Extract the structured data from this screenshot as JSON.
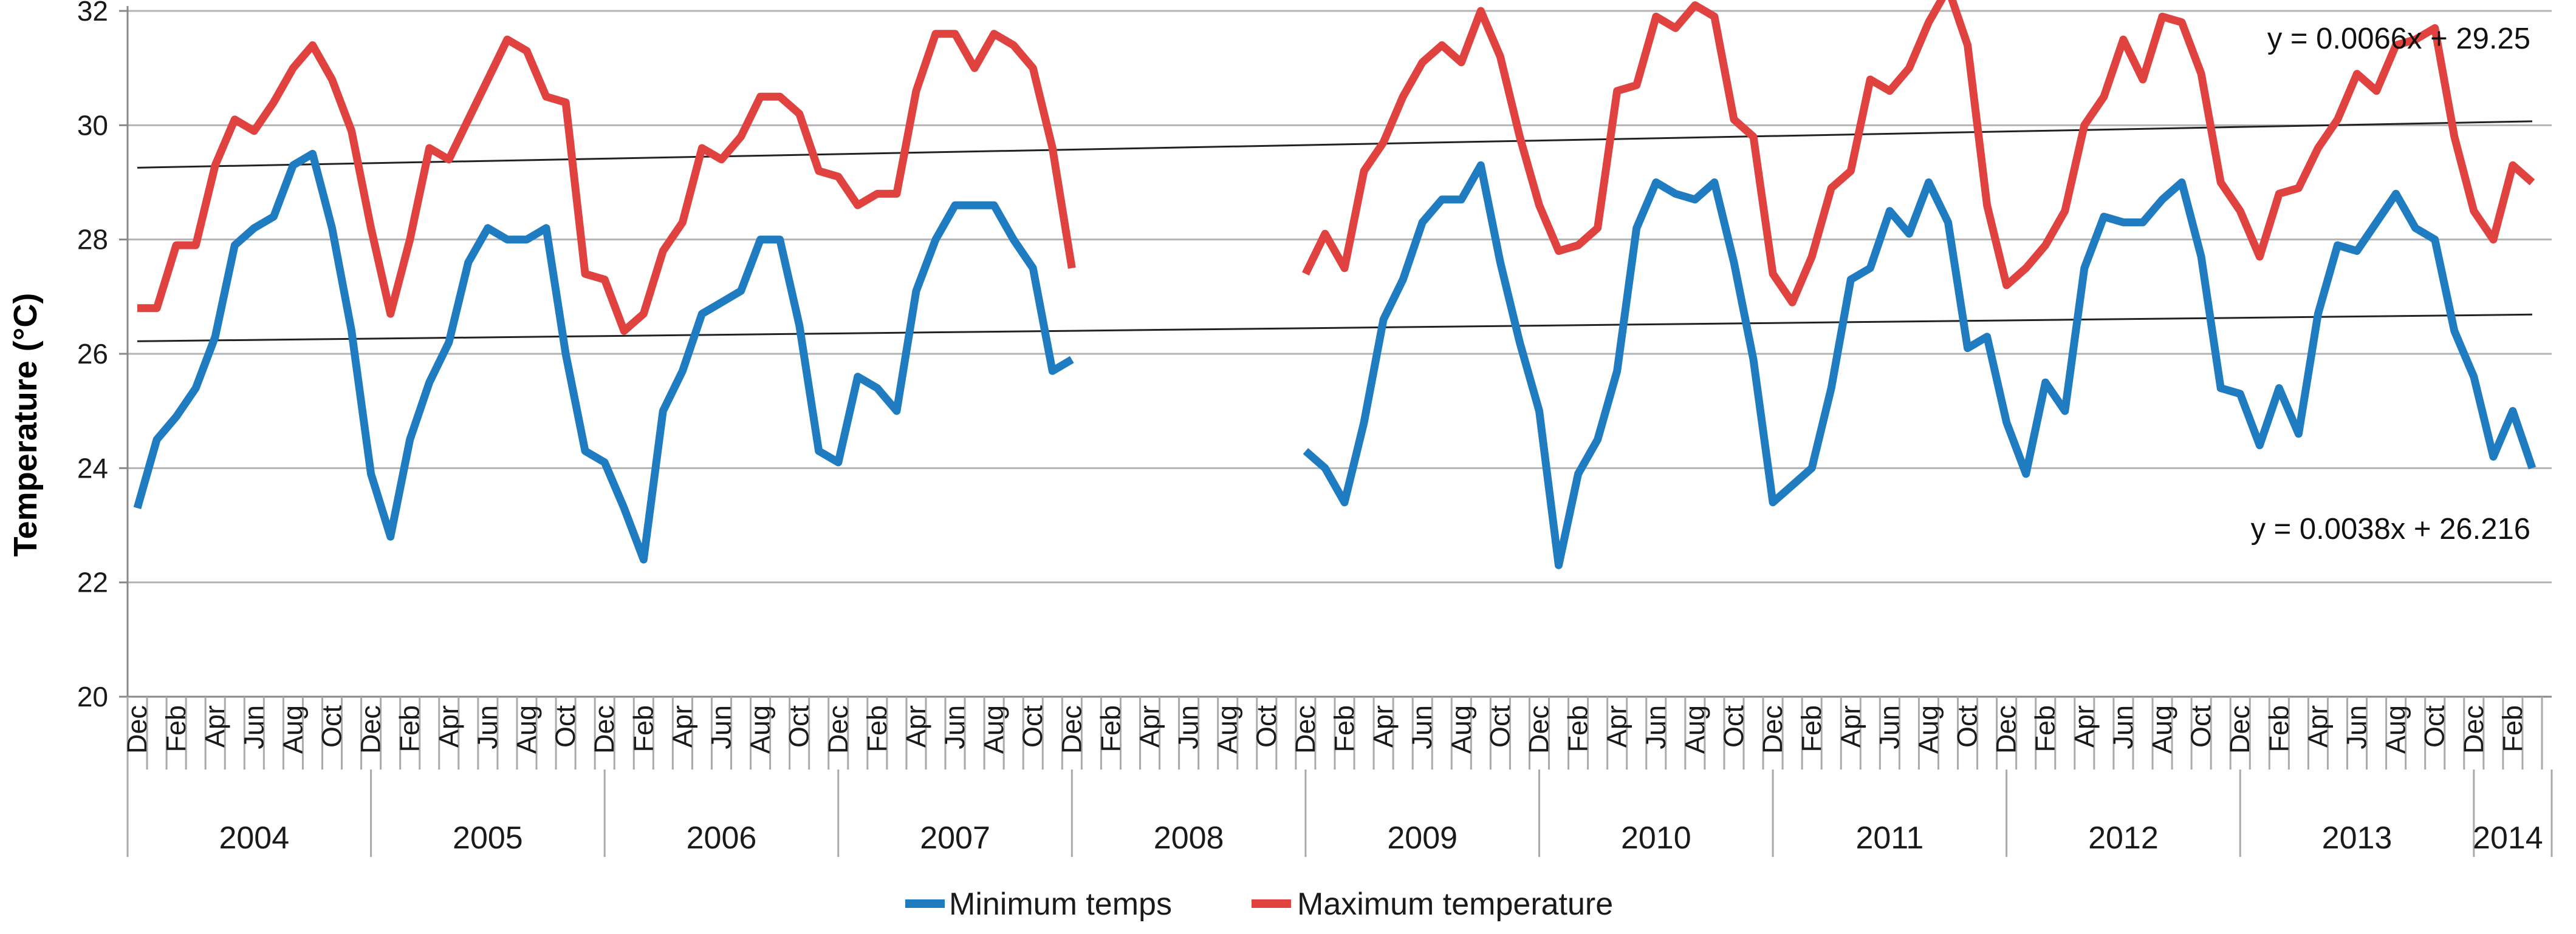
{
  "chart_data": {
    "type": "line",
    "title": "",
    "xlabel": "",
    "ylabel": "Temperature (°C)",
    "ylim": [
      20,
      32
    ],
    "yticks": [
      20,
      22,
      24,
      26,
      28,
      30,
      32
    ],
    "grid": true,
    "month_labels": [
      "Dec",
      "Feb",
      "Apr",
      "Jun",
      "Aug",
      "Oct",
      "Dec",
      "Feb",
      "Apr",
      "Jun",
      "Aug",
      "Oct",
      "Dec",
      "Feb",
      "Apr",
      "Jun",
      "Aug",
      "Oct",
      "Dec",
      "Feb",
      "Apr",
      "Jun",
      "Aug",
      "Oct",
      "Dec",
      "Feb",
      "Apr",
      "Jun",
      "Aug",
      "Oct",
      "Dec",
      "Feb",
      "Apr",
      "Jun",
      "Aug",
      "Oct",
      "Dec",
      "Feb",
      "Apr",
      "Jun",
      "Aug",
      "Oct",
      "Dec",
      "Feb",
      "Apr",
      "Jun",
      "Aug",
      "Oct",
      "Dec",
      "Feb",
      "Apr",
      "Jun",
      "Aug",
      "Oct",
      "Dec",
      "Feb",
      "Apr",
      "Jun",
      "Aug",
      "Oct",
      "Dec",
      "Feb"
    ],
    "years": [
      {
        "label": "2004",
        "start": 0.5,
        "end": 12.5
      },
      {
        "label": "2005",
        "start": 12.5,
        "end": 24.5
      },
      {
        "label": "2006",
        "start": 24.5,
        "end": 36.5
      },
      {
        "label": "2007",
        "start": 36.5,
        "end": 48.5
      },
      {
        "label": "2008",
        "start": 48.5,
        "end": 60.5
      },
      {
        "label": "2009",
        "start": 60.5,
        "end": 72.5
      },
      {
        "label": "2010",
        "start": 72.5,
        "end": 84.5
      },
      {
        "label": "2011",
        "start": 84.5,
        "end": 96.5
      },
      {
        "label": "2012",
        "start": 96.5,
        "end": 108.5
      },
      {
        "label": "2013",
        "start": 108.5,
        "end": 120.5
      },
      {
        "label": "2014",
        "start": 120.5,
        "end": 124
      }
    ],
    "series": [
      {
        "name": "Minimum temps",
        "color": "#1f7cc1",
        "values": [
          23.3,
          24.5,
          24.9,
          25.4,
          26.3,
          27.9,
          28.2,
          28.4,
          29.3,
          29.5,
          28.2,
          26.4,
          23.9,
          22.8,
          24.5,
          25.5,
          26.2,
          27.6,
          28.2,
          28.0,
          28.0,
          28.2,
          26.0,
          24.3,
          24.1,
          23.3,
          22.4,
          25.0,
          25.7,
          26.7,
          26.9,
          27.1,
          28.0,
          28.0,
          26.5,
          24.3,
          24.1,
          25.6,
          25.4,
          25.0,
          27.1,
          28.0,
          28.6,
          28.6,
          28.6,
          28.0,
          27.5,
          25.7,
          25.9,
          null,
          null,
          null,
          null,
          null,
          null,
          null,
          null,
          null,
          null,
          null,
          24.3,
          24.0,
          23.4,
          24.8,
          26.6,
          27.3,
          28.3,
          28.7,
          28.7,
          29.3,
          27.6,
          26.2,
          25.0,
          22.3,
          23.9,
          24.5,
          25.7,
          28.2,
          29.0,
          28.8,
          28.7,
          29.0,
          27.6,
          25.9,
          23.4,
          23.7,
          24.0,
          25.4,
          27.3,
          27.5,
          28.5,
          28.1,
          29.0,
          28.3,
          26.1,
          26.3,
          24.8,
          23.9,
          25.5,
          25.0,
          27.5,
          28.4,
          28.3,
          28.3,
          28.7,
          29.0,
          27.7,
          25.4,
          25.3,
          24.4,
          25.4,
          24.6,
          26.7,
          27.9,
          27.8,
          28.3,
          28.8,
          28.2,
          28.0,
          26.4,
          25.6,
          24.2,
          25.0,
          24.0
        ]
      },
      {
        "name": "Maximum temperature",
        "color": "#e0433f",
        "values": [
          26.8,
          26.8,
          27.9,
          27.9,
          29.3,
          30.1,
          29.9,
          30.4,
          31.0,
          31.4,
          30.8,
          29.9,
          28.2,
          26.7,
          28.0,
          29.6,
          29.4,
          30.1,
          30.8,
          31.5,
          31.3,
          30.5,
          30.4,
          27.4,
          27.3,
          26.4,
          26.7,
          27.8,
          28.3,
          29.6,
          29.4,
          29.8,
          30.5,
          30.5,
          30.2,
          29.2,
          29.1,
          28.6,
          28.8,
          28.8,
          30.6,
          31.6,
          31.6,
          31.0,
          31.6,
          31.4,
          31.0,
          29.6,
          27.5,
          null,
          null,
          null,
          null,
          null,
          null,
          null,
          null,
          null,
          null,
          null,
          27.4,
          28.1,
          27.5,
          29.2,
          29.7,
          30.5,
          31.1,
          31.4,
          31.1,
          32.0,
          31.2,
          29.8,
          28.6,
          27.8,
          27.9,
          28.2,
          30.6,
          30.7,
          31.9,
          31.7,
          32.1,
          31.9,
          30.1,
          29.8,
          27.4,
          26.9,
          27.7,
          28.9,
          29.2,
          30.8,
          30.6,
          31.0,
          31.8,
          32.4,
          31.4,
          28.6,
          27.2,
          27.5,
          27.9,
          28.5,
          30.0,
          30.5,
          31.5,
          30.8,
          31.9,
          31.8,
          30.9,
          29.0,
          28.5,
          27.7,
          28.8,
          28.9,
          29.6,
          30.1,
          30.9,
          30.6,
          31.4,
          31.5,
          31.7,
          29.8,
          28.5,
          28.0,
          29.3,
          29.0
        ]
      }
    ],
    "trendlines": [
      {
        "series": "Maximum temperature",
        "slope": 0.0066,
        "intercept": 29.25,
        "label": "y = 0.0066x + 29.25"
      },
      {
        "series": "Minimum temps",
        "slope": 0.0038,
        "intercept": 26.216,
        "label": "y = 0.0038x + 26.216"
      }
    ],
    "legend": {
      "position": "bottom"
    }
  }
}
